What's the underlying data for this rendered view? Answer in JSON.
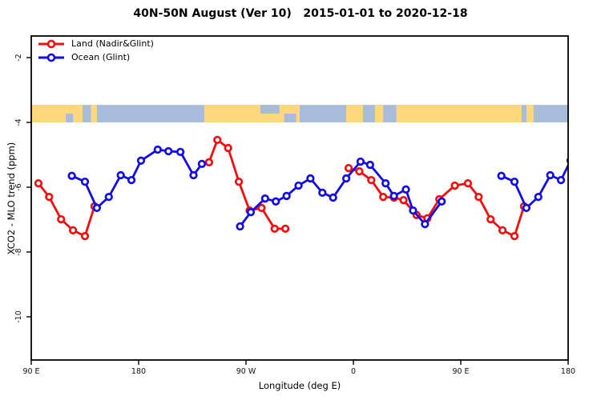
{
  "title": "40N-50N August (Ver 10)   2015-01-01 to 2020-12-18",
  "legend": {
    "items": [
      {
        "label": "Land (Nadir&Glint)",
        "color": "#f50d0d"
      },
      {
        "label": "Ocean (Glint)",
        "color": "#120de8"
      }
    ]
  },
  "axes": {
    "xlabel": "Longitude (deg E)",
    "ylabel": "XCO2 - MLO trend (ppm)",
    "xlim_deg": [
      90,
      540
    ],
    "ylim_ppm": [
      -11.3,
      -1.3
    ],
    "xticks": [
      {
        "deg": 90,
        "label": "90 E"
      },
      {
        "deg": 180,
        "label": "180"
      },
      {
        "deg": 270,
        "label": "90 W"
      },
      {
        "deg": 360,
        "label": "0"
      },
      {
        "deg": 450,
        "label": "90 E"
      },
      {
        "deg": 540,
        "label": "180"
      }
    ],
    "yticks": [
      {
        "ppm": -2,
        "label": "-2"
      },
      {
        "ppm": -4,
        "label": "-4"
      },
      {
        "ppm": -6,
        "label": "-6"
      },
      {
        "ppm": -8,
        "label": "-8"
      },
      {
        "ppm": -10,
        "label": "-10"
      }
    ]
  },
  "chart_data": {
    "type": "line",
    "note": "x axis spans 450 deg (90E wrapping to 180); rightmost 90 deg repeats leftmost 90 deg",
    "series": [
      {
        "name": "Land (Nadir&Glint)",
        "color": "#f50d0d",
        "marker": "open-circle",
        "segments": [
          [
            [
              96,
              -5.88
            ],
            [
              105,
              -6.3
            ],
            [
              115,
              -6.99
            ],
            [
              125,
              -7.33
            ],
            [
              135,
              -7.51
            ],
            [
              143,
              -6.59
            ]
          ],
          [
            [
              239,
              -5.23
            ],
            [
              246,
              -4.54
            ],
            [
              255,
              -4.79
            ],
            [
              264,
              -5.83
            ],
            [
              273,
              -6.72
            ],
            [
              283,
              -6.64
            ],
            [
              294,
              -7.28
            ],
            [
              303,
              -7.28
            ]
          ],
          [
            [
              356,
              -5.41
            ],
            [
              365,
              -5.51
            ],
            [
              375,
              -5.78
            ],
            [
              385,
              -6.3
            ],
            [
              394,
              -6.32
            ],
            [
              402,
              -6.4
            ],
            [
              413,
              -6.86
            ],
            [
              422,
              -6.96
            ],
            [
              432,
              -6.37
            ],
            [
              445,
              -5.95
            ],
            [
              456,
              -5.88
            ],
            [
              465,
              -6.3
            ],
            [
              475,
              -6.99
            ],
            [
              485,
              -7.33
            ],
            [
              495,
              -7.51
            ],
            [
              503,
              -6.59
            ]
          ]
        ]
      },
      {
        "name": "Ocean (Glint)",
        "color": "#120de8",
        "marker": "open-circle",
        "segments": [
          [
            [
              124,
              -5.65
            ],
            [
              135,
              -5.83
            ],
            [
              145,
              -6.64
            ],
            [
              155,
              -6.3
            ],
            [
              165,
              -5.63
            ],
            [
              174,
              -5.78
            ],
            [
              182,
              -5.18
            ],
            [
              196,
              -4.84
            ],
            [
              205,
              -4.89
            ],
            [
              215,
              -4.91
            ],
            [
              226,
              -5.63
            ],
            [
              233,
              -5.28
            ]
          ],
          [
            [
              265,
              -7.21
            ],
            [
              274,
              -6.77
            ],
            [
              286,
              -6.35
            ],
            [
              295,
              -6.44
            ],
            [
              304,
              -6.27
            ],
            [
              314,
              -5.95
            ],
            [
              324,
              -5.73
            ],
            [
              334,
              -6.17
            ],
            [
              343,
              -6.32
            ],
            [
              354,
              -5.73
            ],
            [
              366,
              -5.21
            ],
            [
              374,
              -5.31
            ],
            [
              387,
              -5.88
            ],
            [
              394,
              -6.27
            ],
            [
              404,
              -6.07
            ],
            [
              410,
              -6.72
            ],
            [
              420,
              -7.14
            ],
            [
              434,
              -6.44
            ]
          ],
          [
            [
              484,
              -5.65
            ],
            [
              495,
              -5.83
            ],
            [
              505,
              -6.64
            ],
            [
              515,
              -6.3
            ],
            [
              525,
              -5.63
            ],
            [
              534,
              -5.78
            ],
            [
              542,
              -5.18
            ]
          ]
        ]
      }
    ],
    "map_strip": {
      "description": "40N-50N world map band",
      "ocean_color": "#a7bbdb",
      "land_color": "#ffd87e",
      "y_ppm_range": [
        -3.46,
        -4.0
      ],
      "land_blocks_deg": [
        [
          90,
          133
        ],
        [
          140,
          145
        ],
        [
          235,
          315
        ],
        [
          354,
          368
        ],
        [
          378,
          385
        ],
        [
          396,
          501
        ],
        [
          505,
          511
        ]
      ],
      "ocean_patches_deg": [
        {
          "range": [
            119,
            125
          ],
          "part": "bottom"
        },
        {
          "range": [
            282,
            298
          ],
          "part": "top"
        },
        {
          "range": [
            302,
            312
          ],
          "part": "bottom"
        }
      ]
    }
  }
}
